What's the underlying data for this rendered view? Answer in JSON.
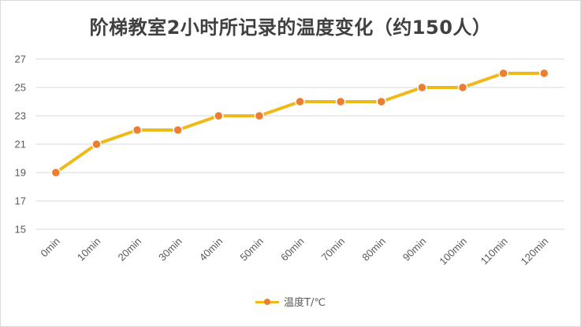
{
  "chart_data": {
    "type": "line",
    "title": "阶梯教室2小时所记录的温度变化（约150人）",
    "categories": [
      "0min",
      "10min",
      "20min",
      "30min",
      "40min",
      "50min",
      "60min",
      "70min",
      "80min",
      "90min",
      "100min",
      "110min",
      "120min"
    ],
    "series": [
      {
        "name": "温度T/℃",
        "values": [
          19,
          21,
          22,
          22,
          23,
          23,
          24,
          24,
          24,
          25,
          25,
          26,
          26
        ]
      }
    ],
    "xlabel": "",
    "ylabel": "",
    "ylim": [
      15,
      27
    ],
    "yticks": [
      "15",
      "17",
      "19",
      "21",
      "23",
      "25",
      "27"
    ],
    "grid": true,
    "legend_position": "bottom",
    "colors": {
      "line": "#f0b91a",
      "marker": "#ed7d31",
      "grid": "#d9d9d9",
      "text": "#595959"
    }
  }
}
